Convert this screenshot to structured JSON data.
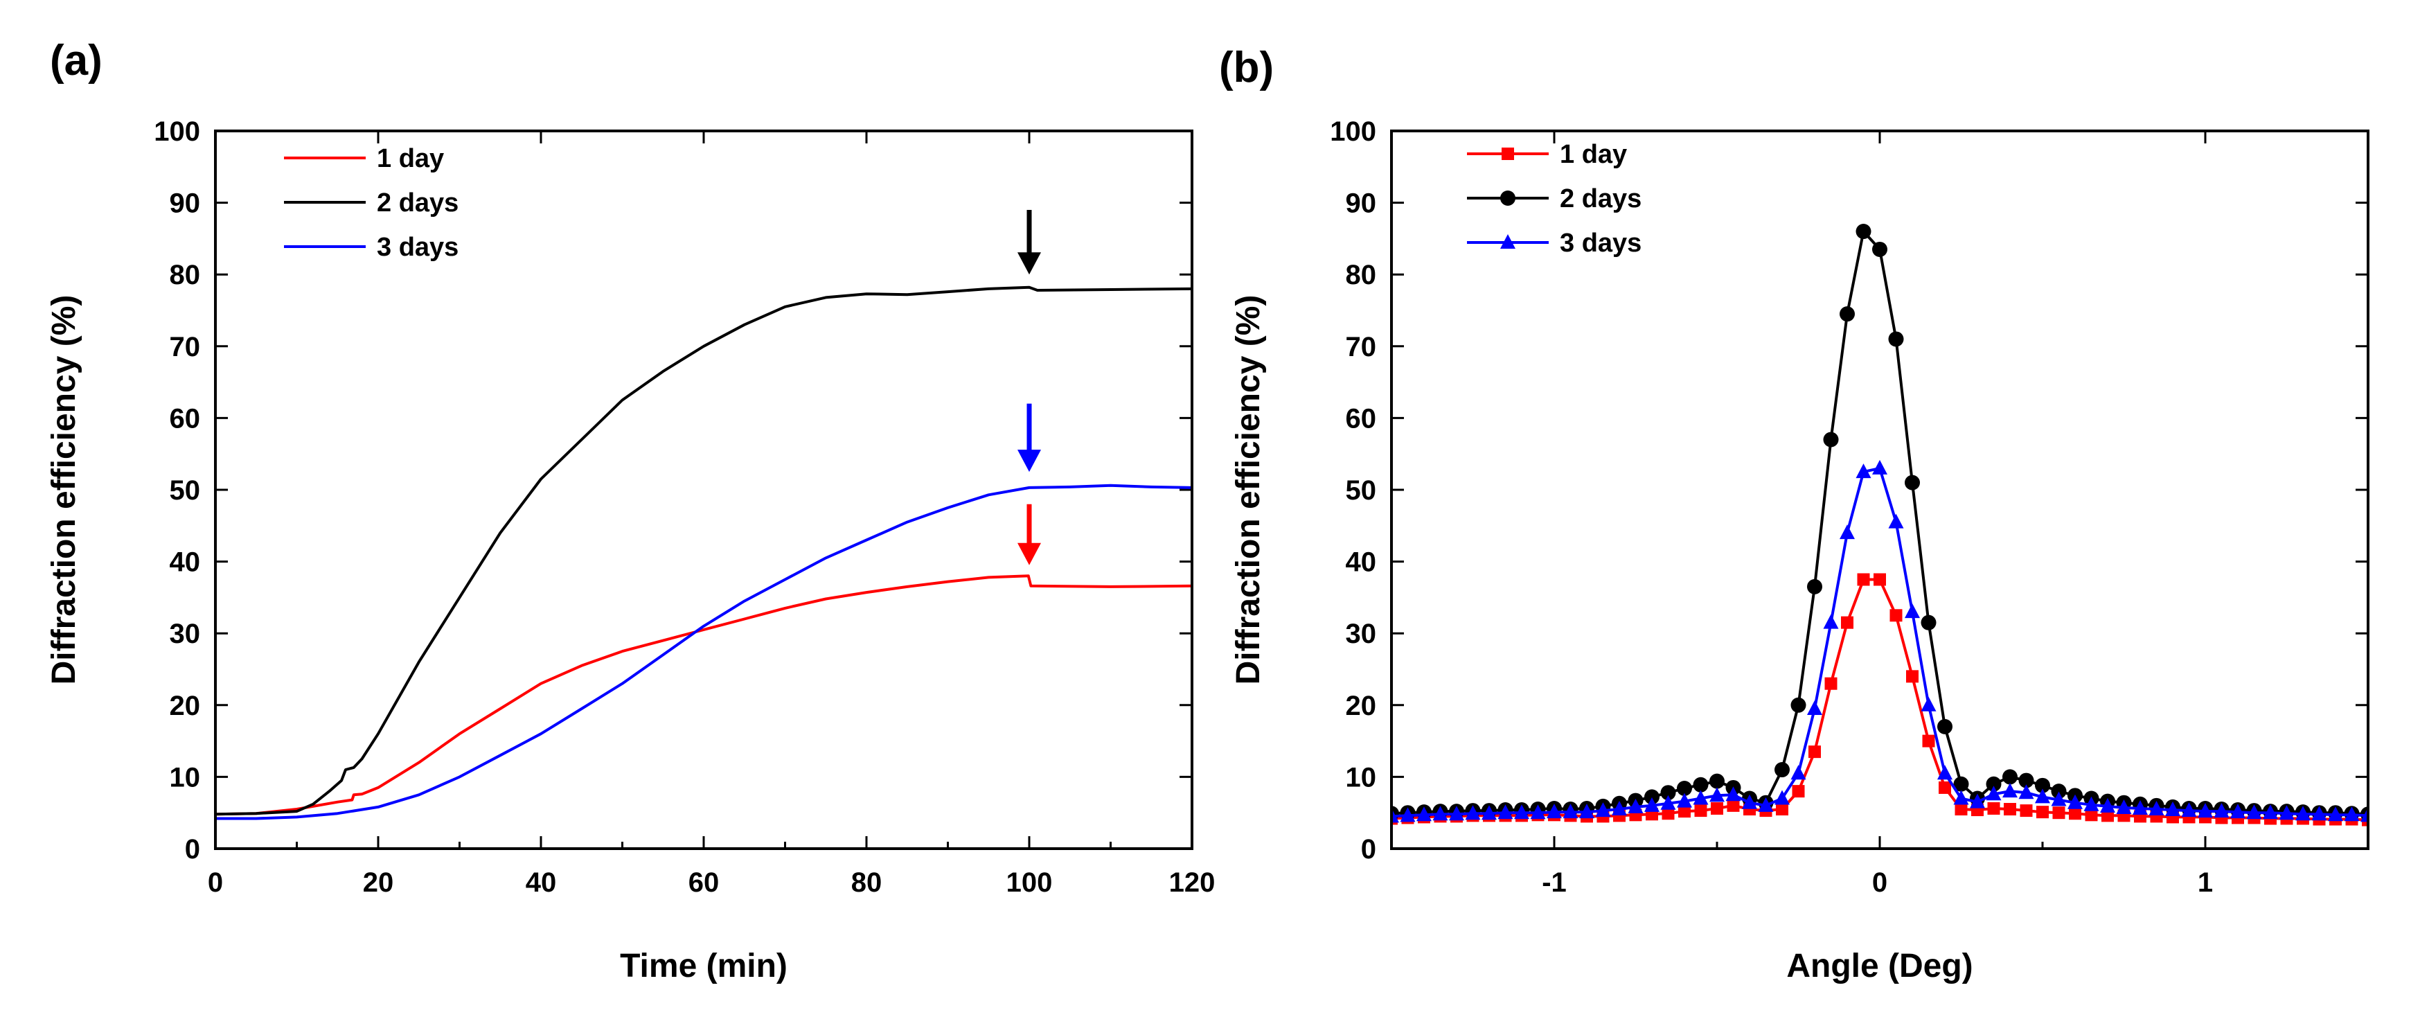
{
  "chart_data": [
    {
      "panel_label": "(a)",
      "type": "line",
      "xlabel": "Time (min)",
      "ylabel": "Diffraction efficiency (%)",
      "xlim": [
        0,
        120
      ],
      "ylim": [
        0,
        100
      ],
      "xticks": [
        0,
        20,
        40,
        60,
        80,
        100,
        120
      ],
      "yticks": [
        0,
        10,
        20,
        30,
        40,
        50,
        60,
        70,
        80,
        90,
        100
      ],
      "legend_position": "top-left",
      "series": [
        {
          "name": "1 day",
          "color": "#ff0000",
          "points": [
            [
              0,
              4.8
            ],
            [
              5,
              4.9
            ],
            [
              10,
              5.5
            ],
            [
              15,
              6.5
            ],
            [
              16.8,
              6.8
            ],
            [
              17,
              7.5
            ],
            [
              18,
              7.6
            ],
            [
              20,
              8.5
            ],
            [
              25,
              12
            ],
            [
              30,
              16
            ],
            [
              35,
              19.5
            ],
            [
              40,
              23
            ],
            [
              45,
              25.5
            ],
            [
              50,
              27.5
            ],
            [
              55,
              29
            ],
            [
              60,
              30.5
            ],
            [
              65,
              32
            ],
            [
              70,
              33.5
            ],
            [
              75,
              34.8
            ],
            [
              80,
              35.7
            ],
            [
              85,
              36.5
            ],
            [
              90,
              37.2
            ],
            [
              95,
              37.8
            ],
            [
              99.9,
              38
            ],
            [
              100.2,
              36.6
            ],
            [
              110,
              36.5
            ],
            [
              120,
              36.6
            ]
          ]
        },
        {
          "name": "2 days",
          "color": "#000000",
          "points": [
            [
              0,
              4.8
            ],
            [
              5,
              4.9
            ],
            [
              10,
              5.2
            ],
            [
              12,
              6.2
            ],
            [
              14,
              8
            ],
            [
              15.5,
              9.5
            ],
            [
              16,
              11
            ],
            [
              17,
              11.3
            ],
            [
              18,
              12.5
            ],
            [
              20,
              16
            ],
            [
              25,
              26
            ],
            [
              30,
              35
            ],
            [
              35,
              44
            ],
            [
              40,
              51.5
            ],
            [
              45,
              57
            ],
            [
              50,
              62.5
            ],
            [
              55,
              66.5
            ],
            [
              60,
              70
            ],
            [
              65,
              73
            ],
            [
              70,
              75.5
            ],
            [
              75,
              76.8
            ],
            [
              80,
              77.3
            ],
            [
              85,
              77.2
            ],
            [
              90,
              77.6
            ],
            [
              95,
              78
            ],
            [
              100,
              78.2
            ],
            [
              101,
              77.8
            ],
            [
              110,
              77.9
            ],
            [
              120,
              78
            ]
          ]
        },
        {
          "name": "3 days",
          "color": "#0000ff",
          "points": [
            [
              0,
              4.2
            ],
            [
              5,
              4.2
            ],
            [
              10,
              4.4
            ],
            [
              15,
              4.9
            ],
            [
              20,
              5.8
            ],
            [
              25,
              7.5
            ],
            [
              30,
              10
            ],
            [
              35,
              13
            ],
            [
              40,
              16
            ],
            [
              45,
              19.5
            ],
            [
              50,
              23
            ],
            [
              55,
              27
            ],
            [
              60,
              31
            ],
            [
              65,
              34.5
            ],
            [
              70,
              37.5
            ],
            [
              75,
              40.5
            ],
            [
              80,
              43
            ],
            [
              85,
              45.5
            ],
            [
              90,
              47.5
            ],
            [
              95,
              49.3
            ],
            [
              100,
              50.3
            ],
            [
              105,
              50.4
            ],
            [
              110,
              50.6
            ],
            [
              115,
              50.4
            ],
            [
              120,
              50.3
            ]
          ]
        }
      ],
      "annotations": [
        {
          "type": "arrow",
          "color": "#000000",
          "x": 100,
          "y_from": 89,
          "y_to": 80
        },
        {
          "type": "arrow",
          "color": "#0000ff",
          "x": 100,
          "y_from": 62,
          "y_to": 52.5
        },
        {
          "type": "arrow",
          "color": "#ff0000",
          "x": 100,
          "y_from": 48,
          "y_to": 39.5
        }
      ]
    },
    {
      "panel_label": "(b)",
      "type": "line",
      "xlabel": "Angle (Deg)",
      "ylabel": "Diffraction efficiency (%)",
      "xlim": [
        -1.5,
        1.5
      ],
      "ylim": [
        0,
        100
      ],
      "xticks": [
        -1,
        0,
        1
      ],
      "xtick_labels": [
        "-1",
        "0",
        "1"
      ],
      "yticks": [
        0,
        10,
        20,
        30,
        40,
        50,
        60,
        70,
        80,
        90,
        100
      ],
      "legend_position": "top-left",
      "series": [
        {
          "name": "1 day",
          "color": "#ff0000",
          "marker": "square",
          "x": [
            -1.5,
            -1.45,
            -1.4,
            -1.35,
            -1.3,
            -1.25,
            -1.2,
            -1.15,
            -1.1,
            -1.05,
            -1.0,
            -0.95,
            -0.9,
            -0.85,
            -0.8,
            -0.75,
            -0.7,
            -0.65,
            -0.6,
            -0.55,
            -0.5,
            -0.45,
            -0.4,
            -0.35,
            -0.3,
            -0.25,
            -0.2,
            -0.15,
            -0.1,
            -0.05,
            0.0,
            0.05,
            0.1,
            0.15,
            0.2,
            0.25,
            0.3,
            0.35,
            0.4,
            0.45,
            0.5,
            0.55,
            0.6,
            0.65,
            0.7,
            0.75,
            0.8,
            0.85,
            0.9,
            0.95,
            1.0,
            1.05,
            1.1,
            1.15,
            1.2,
            1.25,
            1.3,
            1.35,
            1.4,
            1.45,
            1.5
          ],
          "values": [
            4.2,
            4.3,
            4.4,
            4.5,
            4.5,
            4.6,
            4.6,
            4.6,
            4.6,
            4.7,
            4.7,
            4.6,
            4.5,
            4.5,
            4.6,
            4.7,
            4.8,
            4.9,
            5.2,
            5.3,
            5.6,
            6.0,
            5.5,
            5.3,
            5.5,
            8.0,
            13.5,
            23.0,
            31.5,
            37.5,
            37.5,
            32.5,
            24.0,
            15.0,
            8.5,
            5.5,
            5.4,
            5.6,
            5.5,
            5.3,
            5.1,
            5.0,
            4.9,
            4.7,
            4.6,
            4.6,
            4.5,
            4.5,
            4.4,
            4.4,
            4.4,
            4.3,
            4.3,
            4.3,
            4.2,
            4.2,
            4.2,
            4.1,
            4.1,
            4.1,
            4.0
          ]
        },
        {
          "name": "2 days",
          "color": "#000000",
          "marker": "circle",
          "x": [
            -1.5,
            -1.45,
            -1.4,
            -1.35,
            -1.3,
            -1.25,
            -1.2,
            -1.15,
            -1.1,
            -1.05,
            -1.0,
            -0.95,
            -0.9,
            -0.85,
            -0.8,
            -0.75,
            -0.7,
            -0.65,
            -0.6,
            -0.55,
            -0.5,
            -0.45,
            -0.4,
            -0.35,
            -0.3,
            -0.25,
            -0.2,
            -0.15,
            -0.1,
            -0.05,
            0.0,
            0.05,
            0.1,
            0.15,
            0.2,
            0.25,
            0.3,
            0.35,
            0.4,
            0.45,
            0.5,
            0.55,
            0.6,
            0.65,
            0.7,
            0.75,
            0.8,
            0.85,
            0.9,
            0.95,
            1.0,
            1.05,
            1.1,
            1.15,
            1.2,
            1.25,
            1.3,
            1.35,
            1.4,
            1.45,
            1.5
          ],
          "values": [
            4.9,
            5.0,
            5.1,
            5.2,
            5.2,
            5.3,
            5.3,
            5.4,
            5.4,
            5.5,
            5.6,
            5.5,
            5.6,
            5.9,
            6.3,
            6.7,
            7.2,
            7.8,
            8.4,
            8.9,
            9.4,
            8.5,
            7.0,
            6.4,
            11.0,
            20.0,
            36.5,
            57.0,
            74.5,
            86.0,
            83.5,
            71.0,
            51.0,
            31.5,
            17.0,
            9.0,
            7.0,
            9.0,
            10.0,
            9.5,
            8.8,
            8.0,
            7.4,
            7.0,
            6.6,
            6.4,
            6.2,
            6.0,
            5.8,
            5.6,
            5.6,
            5.5,
            5.4,
            5.3,
            5.2,
            5.2,
            5.1,
            5.0,
            5.0,
            4.9,
            4.8
          ]
        },
        {
          "name": "3 days",
          "color": "#0000ff",
          "marker": "triangle",
          "x": [
            -1.5,
            -1.45,
            -1.4,
            -1.35,
            -1.3,
            -1.25,
            -1.2,
            -1.15,
            -1.1,
            -1.05,
            -1.0,
            -0.95,
            -0.9,
            -0.85,
            -0.8,
            -0.75,
            -0.7,
            -0.65,
            -0.6,
            -0.55,
            -0.5,
            -0.45,
            -0.4,
            -0.35,
            -0.3,
            -0.25,
            -0.2,
            -0.15,
            -0.1,
            -0.05,
            0.0,
            0.05,
            0.1,
            0.15,
            0.2,
            0.25,
            0.3,
            0.35,
            0.4,
            0.45,
            0.5,
            0.55,
            0.6,
            0.65,
            0.7,
            0.75,
            0.8,
            0.85,
            0.9,
            0.95,
            1.0,
            1.05,
            1.1,
            1.15,
            1.2,
            1.25,
            1.3,
            1.35,
            1.4,
            1.45,
            1.5
          ],
          "values": [
            4.5,
            4.6,
            4.7,
            4.8,
            4.8,
            4.9,
            4.9,
            5.0,
            5.0,
            5.0,
            5.1,
            5.1,
            5.1,
            5.3,
            5.5,
            5.8,
            6.0,
            6.3,
            6.6,
            7.0,
            7.4,
            7.5,
            6.4,
            6.0,
            7.0,
            10.5,
            19.5,
            31.5,
            44.0,
            52.5,
            53.0,
            45.5,
            33.0,
            20.0,
            10.5,
            7.0,
            6.5,
            7.6,
            8.0,
            7.8,
            7.2,
            6.8,
            6.4,
            6.1,
            5.9,
            5.7,
            5.6,
            5.5,
            5.4,
            5.3,
            5.2,
            5.2,
            5.1,
            5.0,
            5.0,
            4.9,
            4.8,
            4.8,
            4.7,
            4.7,
            4.6
          ]
        }
      ]
    }
  ]
}
